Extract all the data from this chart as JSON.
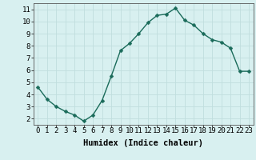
{
  "x": [
    0,
    1,
    2,
    3,
    4,
    5,
    6,
    7,
    8,
    9,
    10,
    11,
    12,
    13,
    14,
    15,
    16,
    17,
    18,
    19,
    20,
    21,
    22,
    23
  ],
  "y": [
    4.6,
    3.6,
    3.0,
    2.6,
    2.3,
    1.8,
    2.3,
    3.5,
    5.5,
    7.6,
    8.2,
    9.0,
    9.9,
    10.5,
    10.6,
    11.1,
    10.1,
    9.7,
    9.0,
    8.5,
    8.3,
    7.8,
    5.9,
    5.9
  ],
  "line_color": "#1a6b5a",
  "marker_color": "#1a6b5a",
  "bg_color": "#d8f0f0",
  "grid_color": "#c0dede",
  "xlabel": "Humidex (Indice chaleur)",
  "ylim": [
    1.5,
    11.5
  ],
  "xlim": [
    -0.5,
    23.5
  ],
  "yticks": [
    2,
    3,
    4,
    5,
    6,
    7,
    8,
    9,
    10,
    11
  ],
  "xticks": [
    0,
    1,
    2,
    3,
    4,
    5,
    6,
    7,
    8,
    9,
    10,
    11,
    12,
    13,
    14,
    15,
    16,
    17,
    18,
    19,
    20,
    21,
    22,
    23
  ],
  "xlabel_fontsize": 7.5,
  "tick_fontsize": 6.5,
  "linewidth": 1.0,
  "markersize": 2.5
}
